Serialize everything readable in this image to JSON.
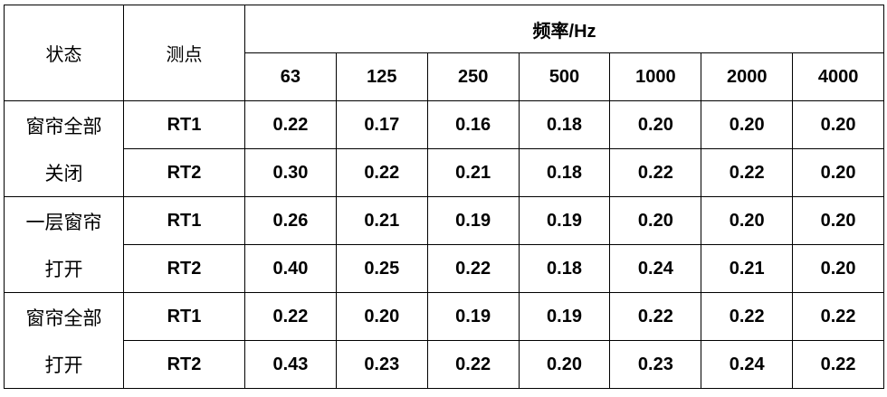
{
  "header": {
    "state": "状态",
    "point": "测点",
    "frequency": "频率/Hz",
    "bands": [
      "63",
      "125",
      "250",
      "500",
      "1000",
      "2000",
      "4000"
    ]
  },
  "groups": [
    {
      "label": [
        "窗帘全部",
        "关闭"
      ],
      "rows": [
        {
          "point": "RT1",
          "values": [
            "0.22",
            "0.17",
            "0.16",
            "0.18",
            "0.20",
            "0.20",
            "0.20"
          ]
        },
        {
          "point": "RT2",
          "values": [
            "0.30",
            "0.22",
            "0.21",
            "0.18",
            "0.22",
            "0.22",
            "0.20"
          ]
        }
      ]
    },
    {
      "label": [
        "一层窗帘",
        "打开"
      ],
      "rows": [
        {
          "point": "RT1",
          "values": [
            "0.26",
            "0.21",
            "0.19",
            "0.19",
            "0.20",
            "0.20",
            "0.20"
          ]
        },
        {
          "point": "RT2",
          "values": [
            "0.40",
            "0.25",
            "0.22",
            "0.18",
            "0.24",
            "0.21",
            "0.20"
          ]
        }
      ]
    },
    {
      "label": [
        "窗帘全部",
        "打开"
      ],
      "rows": [
        {
          "point": "RT1",
          "values": [
            "0.22",
            "0.20",
            "0.19",
            "0.19",
            "0.22",
            "0.22",
            "0.22"
          ]
        },
        {
          "point": "RT2",
          "values": [
            "0.43",
            "0.23",
            "0.22",
            "0.20",
            "0.23",
            "0.24",
            "0.22"
          ]
        }
      ]
    }
  ]
}
